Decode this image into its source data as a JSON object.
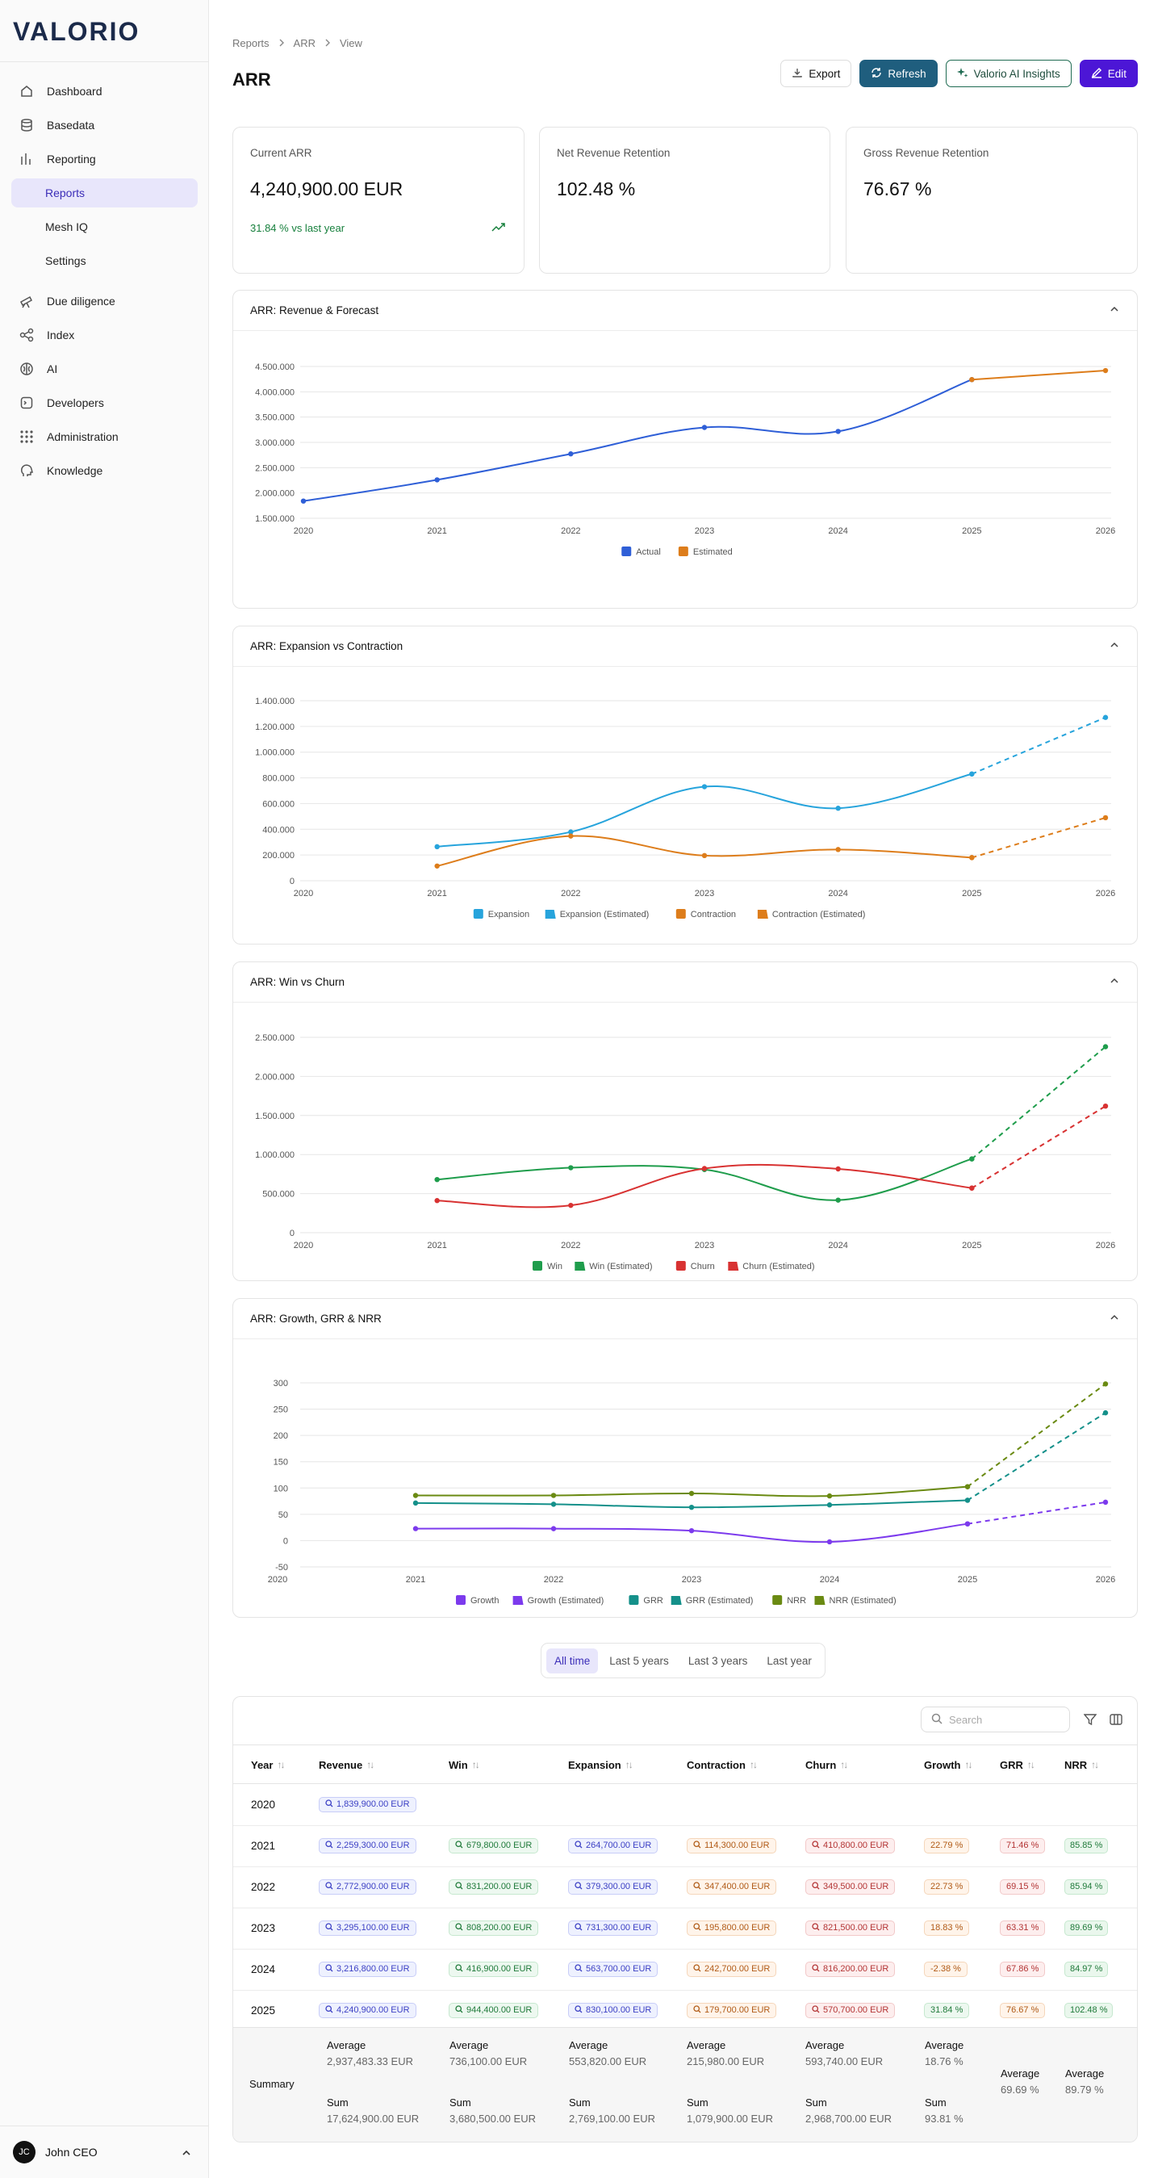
{
  "brand": {
    "name": "VALORIO"
  },
  "sidebar": {
    "items": [
      {
        "label": "Dashboard",
        "icon": "home-icon"
      },
      {
        "label": "Basedata",
        "icon": "database-icon"
      },
      {
        "label": "Reporting",
        "icon": "bar-chart-icon"
      },
      {
        "label": "Reports",
        "sub": true,
        "active": true
      },
      {
        "label": "Mesh IQ",
        "sub": true
      },
      {
        "label": "Settings",
        "sub": true
      },
      {
        "label": "Due diligence",
        "icon": "telescope-icon"
      },
      {
        "label": "Index",
        "icon": "network-icon"
      },
      {
        "label": "AI",
        "icon": "brain-icon"
      },
      {
        "label": "Developers",
        "icon": "code-file-icon"
      },
      {
        "label": "Administration",
        "icon": "grid-icon"
      },
      {
        "label": "Knowledge",
        "icon": "head-icon"
      }
    ],
    "user": {
      "initials": "JC",
      "name": "John CEO"
    }
  },
  "breadcrumb": [
    "Reports",
    "ARR",
    "View"
  ],
  "page": {
    "title": "ARR"
  },
  "actions": {
    "export": "Export",
    "refresh": "Refresh",
    "ai": "Valorio AI Insights",
    "edit": "Edit"
  },
  "kpis": [
    {
      "label": "Current ARR",
      "value": "4,240,900.00 EUR",
      "change": "31.84 % vs last year"
    },
    {
      "label": "Net Revenue Retention",
      "value": "102.48 %"
    },
    {
      "label": "Gross Revenue Retention",
      "value": "76.67 %"
    }
  ],
  "colors": {
    "actual": "#2f5fd7",
    "estimated": "#dd7d1b",
    "expansion": "#27a4dc",
    "contraction": "#dd7d1b",
    "win": "#1f9d4c",
    "churn": "#d83232",
    "growth": "#7c3aed",
    "grr": "#14908a",
    "nrr": "#6a8a12"
  },
  "chart_data": [
    {
      "type": "line",
      "title": "ARR: Revenue & Forecast",
      "x": [
        "2020",
        "2021",
        "2022",
        "2023",
        "2024",
        "2025",
        "2026"
      ],
      "yticks": [
        "1.500.000",
        "2.000.000",
        "2.500.000",
        "3.000.000",
        "3.500.000",
        "4.000.000",
        "4.500.000"
      ],
      "ylim": [
        1500000,
        4500000
      ],
      "series": [
        {
          "name": "Actual",
          "values": [
            1839900,
            2259300,
            2772900,
            3295100,
            3216800,
            4240900,
            null
          ],
          "color": "#2f5fd7"
        },
        {
          "name": "Estimated",
          "values": [
            null,
            null,
            null,
            null,
            null,
            4240900,
            4420000
          ],
          "color": "#dd7d1b"
        }
      ],
      "legend": "bottom"
    },
    {
      "type": "line",
      "title": "ARR: Expansion vs Contraction",
      "x": [
        "2020",
        "2021",
        "2022",
        "2023",
        "2024",
        "2025",
        "2026"
      ],
      "yticks": [
        "0",
        "200.000",
        "400.000",
        "600.000",
        "800.000",
        "1.000.000",
        "1.200.000",
        "1.400.000"
      ],
      "ylim": [
        0,
        1400000
      ],
      "series": [
        {
          "name": "Expansion",
          "values": [
            null,
            264700,
            379300,
            731300,
            563700,
            830100,
            null
          ],
          "color": "#27a4dc"
        },
        {
          "name": "Expansion (Estimated)",
          "values": [
            null,
            null,
            null,
            null,
            null,
            830100,
            1270000
          ],
          "color": "#27a4dc",
          "dashed": true
        },
        {
          "name": "Contraction",
          "values": [
            null,
            114300,
            347400,
            195800,
            242700,
            179700,
            null
          ],
          "color": "#dd7d1b"
        },
        {
          "name": "Contraction (Estimated)",
          "values": [
            null,
            null,
            null,
            null,
            null,
            179700,
            490000
          ],
          "color": "#dd7d1b",
          "dashed": true
        }
      ],
      "legend": "bottom"
    },
    {
      "type": "line",
      "title": "ARR: Win vs Churn",
      "x": [
        "2020",
        "2021",
        "2022",
        "2023",
        "2024",
        "2025",
        "2026"
      ],
      "yticks": [
        "0",
        "500.000",
        "1.000.000",
        "1.500.000",
        "2.000.000",
        "2.500.000"
      ],
      "ylim": [
        0,
        2500000
      ],
      "series": [
        {
          "name": "Win",
          "values": [
            null,
            679800,
            831200,
            808200,
            416900,
            944400,
            null
          ],
          "color": "#1f9d4c"
        },
        {
          "name": "Win (Estimated)",
          "values": [
            null,
            null,
            null,
            null,
            null,
            944400,
            2380000
          ],
          "color": "#1f9d4c",
          "dashed": true
        },
        {
          "name": "Churn",
          "values": [
            null,
            410800,
            349500,
            821500,
            816200,
            570700,
            null
          ],
          "color": "#d83232"
        },
        {
          "name": "Churn (Estimated)",
          "values": [
            null,
            null,
            null,
            null,
            null,
            570700,
            1620000
          ],
          "color": "#d83232",
          "dashed": true
        }
      ],
      "legend": "bottom"
    },
    {
      "type": "line",
      "title": "ARR: Growth, GRR & NRR",
      "x": [
        "2020",
        "2021",
        "2022",
        "2023",
        "2024",
        "2025",
        "2026"
      ],
      "yticks": [
        "-50",
        "0",
        "50",
        "100",
        "150",
        "200",
        "250",
        "300"
      ],
      "ylim": [
        -50,
        300
      ],
      "series": [
        {
          "name": "Growth",
          "values": [
            null,
            22.79,
            22.73,
            18.83,
            -2.38,
            31.84,
            null
          ],
          "color": "#7c3aed"
        },
        {
          "name": "Growth (Estimated)",
          "values": [
            null,
            null,
            null,
            null,
            null,
            31.84,
            73
          ],
          "color": "#7c3aed",
          "dashed": true
        },
        {
          "name": "GRR",
          "values": [
            null,
            71.46,
            69.15,
            63.31,
            67.86,
            76.67,
            null
          ],
          "color": "#14908a"
        },
        {
          "name": "GRR (Estimated)",
          "values": [
            null,
            null,
            null,
            null,
            null,
            76.67,
            243
          ],
          "color": "#14908a",
          "dashed": true
        },
        {
          "name": "NRR",
          "values": [
            null,
            85.85,
            85.94,
            89.69,
            84.97,
            102.48,
            null
          ],
          "color": "#6a8a12"
        },
        {
          "name": "NRR (Estimated)",
          "values": [
            null,
            null,
            null,
            null,
            null,
            102.48,
            298
          ],
          "color": "#6a8a12",
          "dashed": true
        }
      ],
      "legend": "bottom"
    }
  ],
  "range_tabs": [
    "All time",
    "Last 5 years",
    "Last 3 years",
    "Last year"
  ],
  "table": {
    "search_placeholder": "Search",
    "columns": [
      "Year",
      "Revenue",
      "Win",
      "Expansion",
      "Contraction",
      "Churn",
      "Growth",
      "GRR",
      "NRR"
    ],
    "rows": [
      {
        "year": "2020",
        "revenue": "1,839,900.00 EUR",
        "win": "",
        "expansion": "",
        "contraction": "",
        "churn": "",
        "growth": "",
        "grr": "",
        "nrr": ""
      },
      {
        "year": "2021",
        "revenue": "2,259,300.00 EUR",
        "win": "679,800.00 EUR",
        "expansion": "264,700.00 EUR",
        "contraction": "114,300.00 EUR",
        "churn": "410,800.00 EUR",
        "growth": "22.79 %",
        "grr": "71.46 %",
        "nrr": "85.85 %"
      },
      {
        "year": "2022",
        "revenue": "2,772,900.00 EUR",
        "win": "831,200.00 EUR",
        "expansion": "379,300.00 EUR",
        "contraction": "347,400.00 EUR",
        "churn": "349,500.00 EUR",
        "growth": "22.73 %",
        "grr": "69.15 %",
        "nrr": "85.94 %"
      },
      {
        "year": "2023",
        "revenue": "3,295,100.00 EUR",
        "win": "808,200.00 EUR",
        "expansion": "731,300.00 EUR",
        "contraction": "195,800.00 EUR",
        "churn": "821,500.00 EUR",
        "growth": "18.83 %",
        "grr": "63.31 %",
        "nrr": "89.69 %"
      },
      {
        "year": "2024",
        "revenue": "3,216,800.00 EUR",
        "win": "416,900.00 EUR",
        "expansion": "563,700.00 EUR",
        "contraction": "242,700.00 EUR",
        "churn": "816,200.00 EUR",
        "growth": "-2.38 %",
        "grr": "67.86 %",
        "nrr": "84.97 %"
      },
      {
        "year": "2025",
        "revenue": "4,240,900.00 EUR",
        "win": "944,400.00 EUR",
        "expansion": "830,100.00 EUR",
        "contraction": "179,700.00 EUR",
        "churn": "570,700.00 EUR",
        "growth": "31.84 %",
        "grr": "76.67 %",
        "nrr": "102.48 %"
      }
    ],
    "summary": {
      "label": "Summary",
      "average_label": "Average",
      "sum_label": "Sum",
      "revenue": {
        "average": "2,937,483.33 EUR",
        "sum": "17,624,900.00 EUR"
      },
      "win": {
        "average": "736,100.00 EUR",
        "sum": "3,680,500.00 EUR"
      },
      "expansion": {
        "average": "553,820.00 EUR",
        "sum": "2,769,100.00 EUR"
      },
      "contraction": {
        "average": "215,980.00 EUR",
        "sum": "1,079,900.00 EUR"
      },
      "churn": {
        "average": "593,740.00 EUR",
        "sum": "2,968,700.00 EUR"
      },
      "growth": {
        "average": "18.76 %",
        "sum": "93.81 %"
      },
      "grr": {
        "average": "69.69 %"
      },
      "nrr": {
        "average": "89.79 %"
      }
    }
  }
}
